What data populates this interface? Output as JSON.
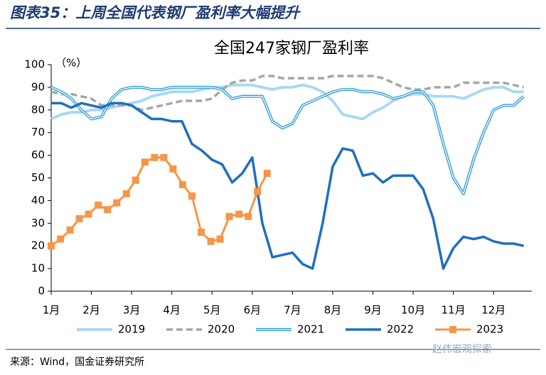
{
  "header": {
    "title": "图表35：上周全国代表钢厂盈利率大幅提升"
  },
  "footer": {
    "source": "来源：Wind，国金证券研究所",
    "watermark": "赵伟宏观探索"
  },
  "chart_data": {
    "type": "line",
    "title": "全国247家钢厂盈利率",
    "y_label": "（%）",
    "x": [
      1,
      1.25,
      1.5,
      1.75,
      2,
      2.25,
      2.5,
      2.75,
      3,
      3.25,
      3.5,
      3.75,
      4,
      4.25,
      4.5,
      4.75,
      5,
      5.25,
      5.5,
      5.75,
      6,
      6.25,
      6.5,
      6.75,
      7,
      7.25,
      7.5,
      7.75,
      8,
      8.25,
      8.5,
      8.75,
      9,
      9.25,
      9.5,
      9.75,
      10,
      10.25,
      10.5,
      10.75,
      11,
      11.25,
      11.5,
      11.75,
      12,
      12.25,
      12.5,
      12.75
    ],
    "xlim": [
      1,
      12.95
    ],
    "xticks": [
      {
        "value": 1,
        "label": "1月"
      },
      {
        "value": 2,
        "label": "2月"
      },
      {
        "value": 3,
        "label": "3月"
      },
      {
        "value": 4,
        "label": "4月"
      },
      {
        "value": 5,
        "label": "5月"
      },
      {
        "value": 6,
        "label": "6月"
      },
      {
        "value": 7,
        "label": "7月"
      },
      {
        "value": 8,
        "label": "8月"
      },
      {
        "value": 9,
        "label": "9月"
      },
      {
        "value": 10,
        "label": "10月"
      },
      {
        "value": 11,
        "label": "11月"
      },
      {
        "value": 12,
        "label": "12月"
      }
    ],
    "ylim": [
      0,
      100
    ],
    "yticks": [
      0,
      10,
      20,
      30,
      40,
      50,
      60,
      70,
      80,
      90,
      100
    ],
    "series": [
      {
        "name": "2019",
        "color": "#a9d9f2",
        "line_style": "solid",
        "line_width": 4,
        "values": [
          76,
          78,
          79,
          79,
          80,
          80,
          81,
          82,
          83,
          84,
          86,
          87,
          88,
          88,
          88,
          89,
          90,
          90,
          91,
          91,
          91,
          90,
          89,
          90,
          90,
          91,
          90,
          88,
          84,
          78,
          77,
          76,
          79,
          81,
          84,
          86,
          87,
          87,
          86,
          86,
          86,
          85,
          87,
          89,
          90,
          90,
          88,
          88
        ]
      },
      {
        "name": "2020",
        "color": "#a6a6a6",
        "line_style": "dashed",
        "line_width": 3.5,
        "values": [
          88,
          87,
          87,
          86,
          85,
          82,
          82,
          82,
          82,
          80,
          81,
          82,
          83,
          84,
          84,
          84,
          85,
          89,
          92,
          93,
          93,
          95,
          95,
          94,
          94,
          94,
          94,
          94,
          95,
          95,
          95,
          95,
          95,
          94,
          92,
          90,
          89,
          89,
          90,
          90,
          90,
          92,
          92,
          92,
          92,
          92,
          91,
          90
        ]
      },
      {
        "name": "2021",
        "color": "#2e9bd6",
        "line_style": "double",
        "line_width": 4,
        "values": [
          90,
          88,
          85,
          80,
          76,
          77,
          85,
          89,
          90,
          90,
          89,
          89,
          90,
          90,
          90,
          90,
          90,
          89,
          85,
          86,
          86,
          86,
          75,
          72,
          74,
          82,
          84,
          86,
          88,
          89,
          89,
          88,
          88,
          87,
          85,
          86,
          88,
          88,
          82,
          65,
          50,
          43,
          58,
          70,
          80,
          82,
          82,
          86
        ]
      },
      {
        "name": "2022",
        "color": "#1f6fbf",
        "line_style": "solid",
        "line_width": 3.5,
        "values": [
          83,
          83,
          81,
          83,
          82,
          81,
          83,
          83,
          82,
          79,
          76,
          76,
          75,
          75,
          65,
          62,
          58,
          56,
          48,
          52,
          59,
          30,
          15,
          16,
          17,
          12,
          10,
          30,
          55,
          63,
          62,
          51,
          52,
          48,
          51,
          51,
          51,
          45,
          32,
          10,
          19,
          24,
          23,
          24,
          22,
          21,
          21,
          20
        ]
      },
      {
        "name": "2023",
        "color": "#f79646",
        "line_style": "solid",
        "line_width": 3,
        "marker": "square",
        "x": [
          1,
          1.23,
          1.47,
          1.7,
          1.93,
          2.17,
          2.4,
          2.63,
          2.87,
          3.1,
          3.33,
          3.57,
          3.8,
          4.03,
          4.27,
          4.5,
          4.73,
          4.97,
          5.2,
          5.43,
          5.67,
          5.9,
          6.13,
          6.37
        ],
        "values": [
          20,
          23,
          27,
          32,
          34,
          38,
          36,
          39,
          43,
          49,
          57,
          59,
          59,
          54,
          47,
          42,
          26,
          22,
          23,
          33,
          34,
          33,
          44,
          52
        ]
      }
    ]
  }
}
